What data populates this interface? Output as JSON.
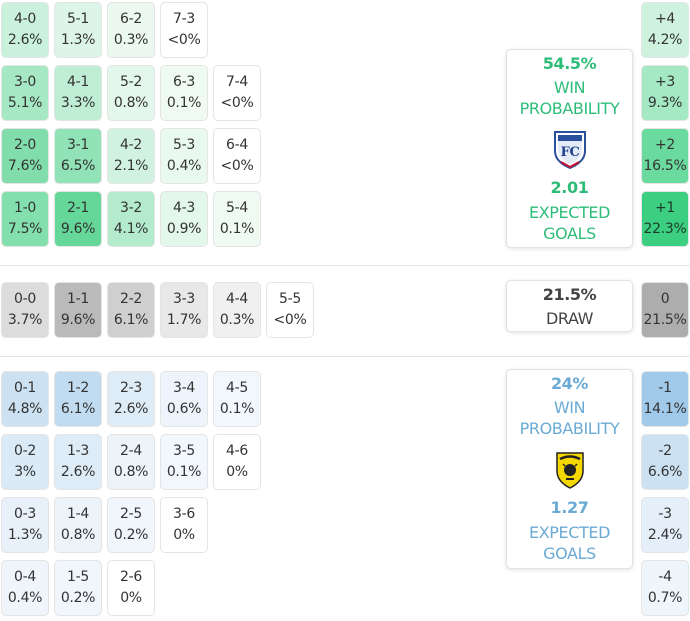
{
  "colors": {
    "home_accent": "#2ebd78",
    "away_accent": "#6aaad4",
    "draw_text": "#444444"
  },
  "home_cells": [
    [
      "4-0",
      "2.6%"
    ],
    [
      "5-1",
      "1.3%"
    ],
    [
      "6-2",
      "0.3%"
    ],
    [
      "7-3",
      "<0%"
    ],
    [
      "3-0",
      "5.1%"
    ],
    [
      "4-1",
      "3.3%"
    ],
    [
      "5-2",
      "0.8%"
    ],
    [
      "6-3",
      "0.1%"
    ],
    [
      "7-4",
      "<0%"
    ],
    [
      "2-0",
      "7.6%"
    ],
    [
      "3-1",
      "6.5%"
    ],
    [
      "4-2",
      "2.1%"
    ],
    [
      "5-3",
      "0.4%"
    ],
    [
      "6-4",
      "<0%"
    ],
    [
      "1-0",
      "7.5%"
    ],
    [
      "2-1",
      "9.6%"
    ],
    [
      "3-2",
      "4.1%"
    ],
    [
      "4-3",
      "0.9%"
    ],
    [
      "5-4",
      "0.1%"
    ]
  ],
  "draw_cells": [
    [
      "0-0",
      "3.7%"
    ],
    [
      "1-1",
      "9.6%"
    ],
    [
      "2-2",
      "6.1%"
    ],
    [
      "3-3",
      "1.7%"
    ],
    [
      "4-4",
      "0.3%"
    ],
    [
      "5-5",
      "<0%"
    ]
  ],
  "away_cells": [
    [
      "0-1",
      "4.8%"
    ],
    [
      "1-2",
      "6.1%"
    ],
    [
      "2-3",
      "2.6%"
    ],
    [
      "3-4",
      "0.6%"
    ],
    [
      "4-5",
      "0.1%"
    ],
    [
      "0-2",
      "3%"
    ],
    [
      "1-3",
      "2.6%"
    ],
    [
      "2-4",
      "0.8%"
    ],
    [
      "3-5",
      "0.1%"
    ],
    [
      "4-6",
      "0%"
    ],
    [
      "0-3",
      "1.3%"
    ],
    [
      "1-4",
      "0.8%"
    ],
    [
      "2-5",
      "0.2%"
    ],
    [
      "3-6",
      "0%"
    ],
    [
      "0-4",
      "0.4%"
    ],
    [
      "1-5",
      "0.2%"
    ],
    [
      "2-6",
      "0%"
    ]
  ],
  "home_margins": [
    [
      "+4",
      "4.2%"
    ],
    [
      "+3",
      "9.3%"
    ],
    [
      "+2",
      "16.5%"
    ],
    [
      "+1",
      "22.3%"
    ]
  ],
  "draw_margin": [
    "0",
    "21.5%"
  ],
  "away_margins": [
    [
      "-1",
      "14.1%"
    ],
    [
      "-2",
      "6.6%"
    ],
    [
      "-3",
      "2.4%"
    ],
    [
      "-4",
      "0.7%"
    ]
  ],
  "home_summary": {
    "win_probability": "54.5%",
    "win_label_1": "WIN",
    "win_label_2": "PROBABILITY",
    "expected_goals": "2.01",
    "xg_label_1": "EXPECTED",
    "xg_label_2": "GOALS",
    "crest_icon": "shield-crest-icon"
  },
  "draw_summary": {
    "probability": "21.5%",
    "label": "DRAW"
  },
  "away_summary": {
    "win_probability": "24%",
    "win_label_1": "WIN",
    "win_label_2": "PROBABILITY",
    "expected_goals": "1.27",
    "xg_label_1": "EXPECTED",
    "xg_label_2": "GOALS",
    "crest_icon": "brewers-crest-icon"
  },
  "chart_data": {
    "type": "heatmap",
    "title": "",
    "home_win": {
      "scores": [
        "4-0",
        "5-1",
        "6-2",
        "7-3",
        "3-0",
        "4-1",
        "5-2",
        "6-3",
        "7-4",
        "2-0",
        "3-1",
        "4-2",
        "5-3",
        "6-4",
        "1-0",
        "2-1",
        "3-2",
        "4-3",
        "5-4"
      ],
      "values": [
        2.6,
        1.3,
        0.3,
        0,
        5.1,
        3.3,
        0.8,
        0.1,
        0,
        7.6,
        6.5,
        2.1,
        0.4,
        0,
        7.5,
        9.6,
        4.1,
        0.9,
        0.1
      ]
    },
    "draw": {
      "scores": [
        "0-0",
        "1-1",
        "2-2",
        "3-3",
        "4-4",
        "5-5"
      ],
      "values": [
        3.7,
        9.6,
        6.1,
        1.7,
        0.3,
        0
      ]
    },
    "away_win": {
      "scores": [
        "0-1",
        "1-2",
        "2-3",
        "3-4",
        "4-5",
        "0-2",
        "1-3",
        "2-4",
        "3-5",
        "4-6",
        "0-3",
        "1-4",
        "2-5",
        "3-6",
        "0-4",
        "1-5",
        "2-6"
      ],
      "values": [
        4.8,
        6.1,
        2.6,
        0.6,
        0.1,
        3,
        2.6,
        0.8,
        0.1,
        0,
        1.3,
        0.8,
        0.2,
        0,
        0.4,
        0.2,
        0
      ]
    },
    "goal_difference": {
      "margins": [
        "+4",
        "+3",
        "+2",
        "+1",
        "0",
        "-1",
        "-2",
        "-3",
        "-4"
      ],
      "values": [
        4.2,
        9.3,
        16.5,
        22.3,
        21.5,
        14.1,
        6.6,
        2.4,
        0.7
      ]
    },
    "home_win_probability": 54.5,
    "draw_probability": 21.5,
    "away_win_probability": 24,
    "home_expected_goals": 2.01,
    "away_expected_goals": 1.27
  }
}
